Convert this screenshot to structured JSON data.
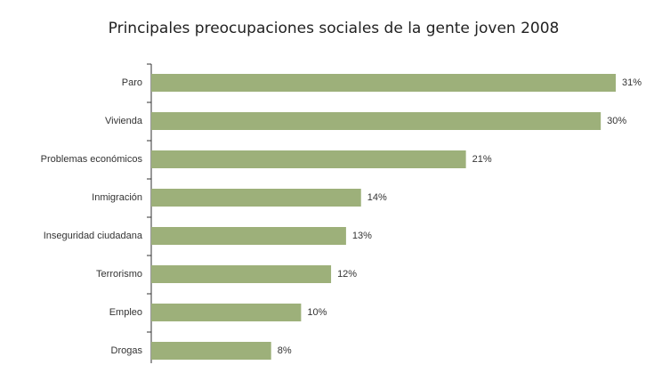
{
  "chart_data": {
    "type": "hbar",
    "title": "Principales preocupaciones sociales de la gente joven 2008",
    "categories": [
      "Paro",
      "Vivienda",
      "Problemas económicos",
      "Inmigración",
      "Inseguridad ciudadana",
      "Terrorismo",
      "Empleo",
      "Drogas"
    ],
    "values": [
      31,
      30,
      21,
      14,
      13,
      12,
      10,
      8
    ],
    "value_labels": [
      "31%",
      "30%",
      "21%",
      "14%",
      "13%",
      "12%",
      "10%",
      "8%"
    ],
    "color": "#9db07a"
  }
}
